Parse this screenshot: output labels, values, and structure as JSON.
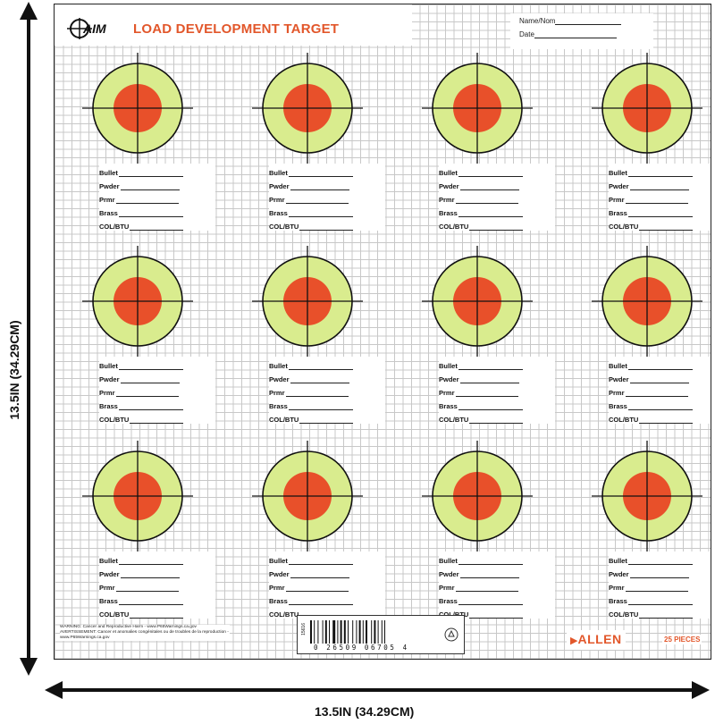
{
  "header": {
    "title": "LOAD DEVELOPMENT TARGET",
    "logo_text": "AIM"
  },
  "name_fields": {
    "name_label": "Name/Nom",
    "date_label": "Date"
  },
  "field_labels": [
    "Bullet",
    "Pwder",
    "Prmr",
    "Brass",
    "COL/BTU"
  ],
  "targets": {
    "rows": 3,
    "cols": 4,
    "count": 12
  },
  "colors": {
    "outer_ring": "#d9ec8e",
    "bullseye": "#e8502a",
    "accent": "#e2572b",
    "grid": "#c8c8c8"
  },
  "footer": {
    "warning_1": "WARNING: Cancer and Reproductive Harm - www.P65Warnings.ca.gov",
    "warning_2": "AVERTISSEMENT: Cancer et anomalies congénitales ou de troubles de la reproduction - www.P65Warnings.ca.gov",
    "barcode_digits": "0 26509 06705 4",
    "item_number": "15616",
    "brand": "ALLEN",
    "pieces": "25 PIECES"
  },
  "dimensions": {
    "width_label": "13.5IN (34.29CM)",
    "height_label": "13.5IN (34.29CM)"
  }
}
